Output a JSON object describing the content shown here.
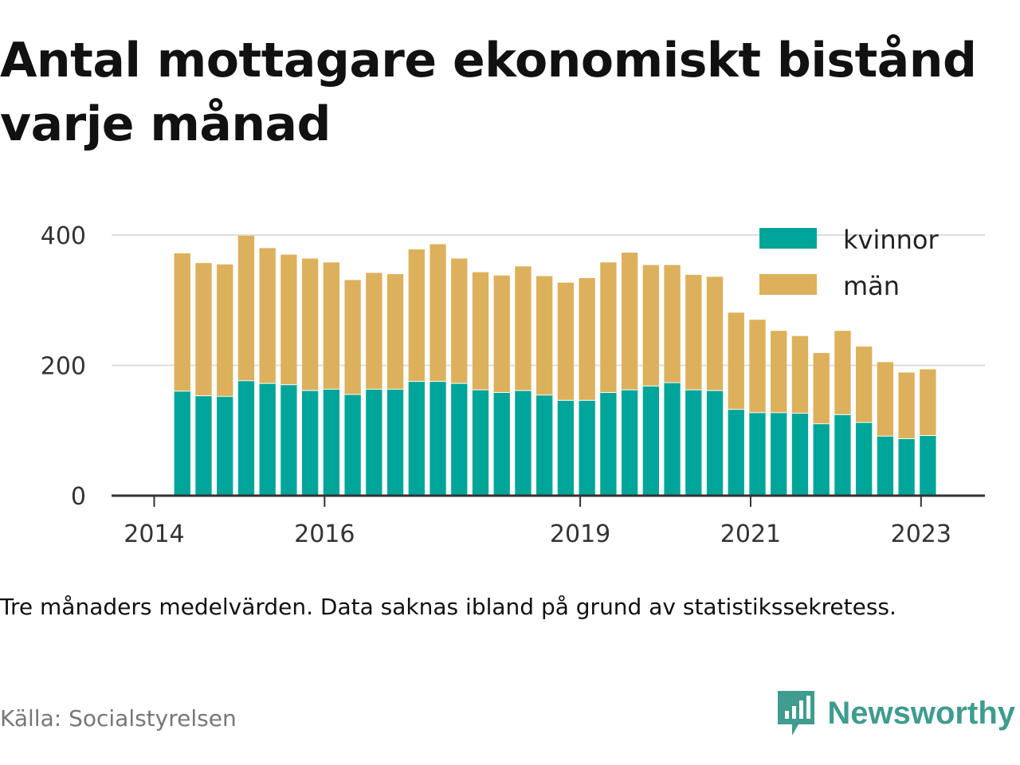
{
  "title": "Antal mottagare ekonomiskt bistånd varje månad",
  "note": "Tre månaders medelvärden. Data saknas ibland på grund av statistikssekretess.",
  "source": "Källa: Socialstyrelsen",
  "brand": {
    "name": "Newsworthy",
    "icon": "newsworthy-logo-icon",
    "color": "#3f9c8e"
  },
  "chart_data": {
    "type": "bar",
    "stacked": true,
    "title": "Antal mottagare ekonomiskt bistånd varje månad",
    "xlabel": "",
    "ylabel": "",
    "ylim": [
      0,
      400
    ],
    "yticks": [
      0,
      200,
      400
    ],
    "xticks": [
      {
        "label": "2014",
        "x": 2014.0
      },
      {
        "label": "2016",
        "x": 2016.0
      },
      {
        "label": "2019",
        "x": 2019.0
      },
      {
        "label": "2021",
        "x": 2021.0
      },
      {
        "label": "2023",
        "x": 2023.0
      }
    ],
    "xlim": [
      2013.5,
      2023.75
    ],
    "bar_period_years": 0.25,
    "grid": true,
    "legend_position": "top-right",
    "x": [
      2014.33,
      2014.58,
      2014.83,
      2015.08,
      2015.33,
      2015.58,
      2015.83,
      2016.08,
      2016.33,
      2016.58,
      2016.83,
      2017.08,
      2017.33,
      2017.58,
      2017.83,
      2018.08,
      2018.33,
      2018.58,
      2018.83,
      2019.08,
      2019.33,
      2019.58,
      2019.83,
      2020.08,
      2020.33,
      2020.58,
      2020.83,
      2021.08,
      2021.33,
      2021.58,
      2021.83,
      2022.08,
      2022.33,
      2022.58,
      2022.83,
      2023.08
    ],
    "series": [
      {
        "name": "kvinnor",
        "color": "#00a59a",
        "values": [
          161,
          154,
          153,
          177,
          173,
          171,
          162,
          164,
          156,
          164,
          164,
          176,
          176,
          173,
          163,
          159,
          162,
          155,
          147,
          147,
          159,
          163,
          169,
          174,
          163,
          162,
          133,
          128,
          128,
          127,
          111,
          125,
          113,
          92,
          88,
          93
        ]
      },
      {
        "name": "män",
        "color": "#ddb05c",
        "values": [
          211,
          203,
          202,
          222,
          207,
          199,
          202,
          194,
          175,
          178,
          176,
          202,
          210,
          191,
          180,
          179,
          190,
          182,
          180,
          187,
          199,
          210,
          185,
          180,
          176,
          174,
          148,
          142,
          125,
          118,
          108,
          128,
          116,
          113,
          101,
          101
        ]
      }
    ]
  }
}
